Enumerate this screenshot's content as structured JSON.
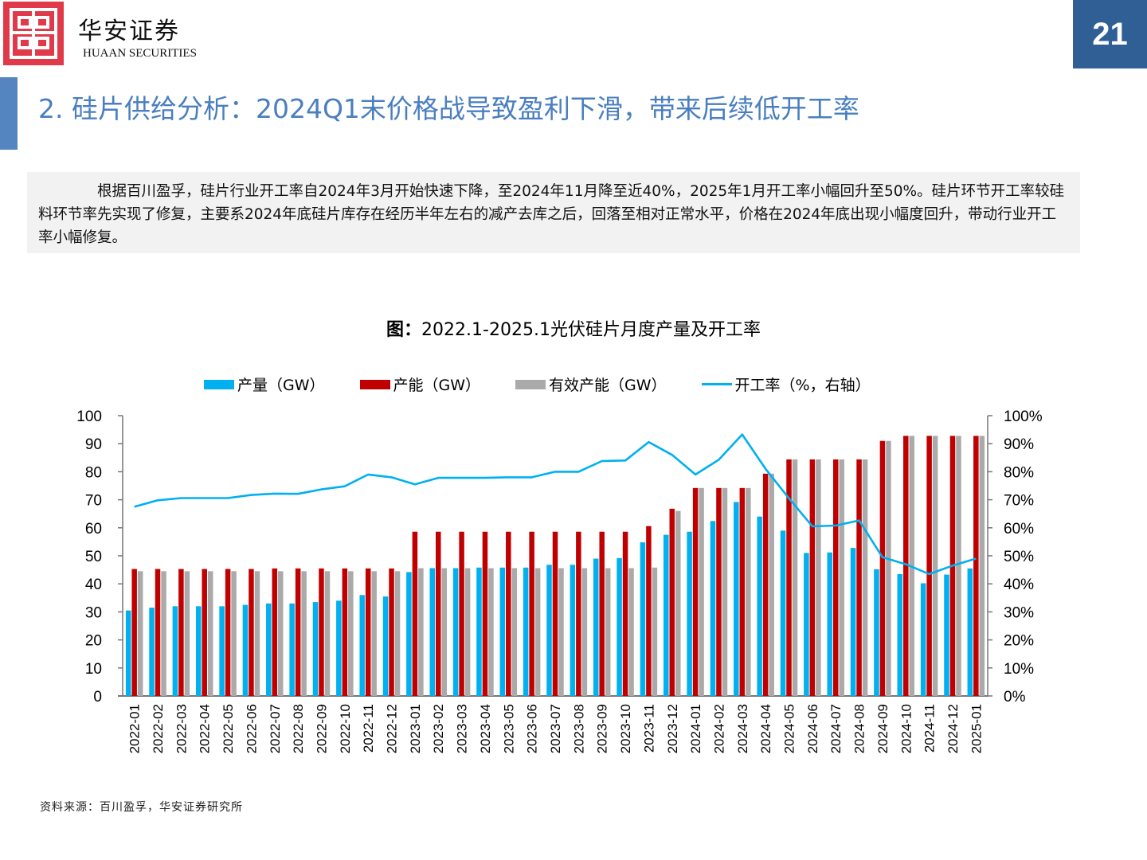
{
  "header": {
    "logo_cn": "华安证券",
    "logo_en": "HUAAN SECURITIES",
    "page_number": "21"
  },
  "title": "2. 硅片供给分析：2024Q1末价格战导致盈利下滑，带来后续低开工率",
  "summary": "根据百川盈孚，硅片行业开工率自2024年3月开始快速下降，至2024年11月降至近40%，2025年1月开工率小幅回升至50%。硅片环节开工率较硅料环节率先实现了修复，主要系2024年底硅片库存在经历半年左右的减产去库之后，回落至相对正常水平，价格在2024年底出现小幅度回升，带动行业开工率小幅修复。",
  "chart_title_prefix": "图：",
  "chart_title_main": "2022.1-2025.1光伏硅片月度产量及开工率",
  "source": "资料来源：百川盈孚，华安证券研究所",
  "colors": {
    "output": "#00b0f0",
    "capacity": "#c00000",
    "effective": "#aaaaaa",
    "rate": "#00b0f0",
    "title": "#4a7fbf",
    "page_badge": "#2f5f95"
  },
  "chart_data": {
    "type": "bar+line",
    "title": "2022.1-2025.1光伏硅片月度产量及开工率",
    "legend_position": "top",
    "categories": [
      "2022-01",
      "2022-02",
      "2022-03",
      "2022-04",
      "2022-05",
      "2022-06",
      "2022-07",
      "2022-08",
      "2022-09",
      "2022-10",
      "2022-11",
      "2022-12",
      "2023-01",
      "2023-02",
      "2023-03",
      "2023-04",
      "2023-05",
      "2023-06",
      "2023-07",
      "2023-08",
      "2023-09",
      "2023-10",
      "2023-11",
      "2023-12",
      "2024-01",
      "2024-02",
      "2024-03",
      "2024-04",
      "2024-05",
      "2024-06",
      "2024-07",
      "2024-08",
      "2024-09",
      "2024-10",
      "2024-11",
      "2024-12",
      "2025-01"
    ],
    "series": [
      {
        "name": "产量（GW）",
        "type": "bar",
        "axis": "left",
        "values": [
          30.5,
          31.5,
          32,
          32,
          32,
          32.5,
          33,
          33,
          33.5,
          34,
          36,
          35.5,
          44.2,
          45.6,
          45.6,
          45.8,
          45.8,
          45.8,
          46.8,
          46.8,
          49,
          49.2,
          54.8,
          57.5,
          58.6,
          62.4,
          69.2,
          64,
          59,
          51,
          51.2,
          52.8,
          45.2,
          43.5,
          40.2,
          43.3,
          45.5
        ]
      },
      {
        "name": "产能（GW）",
        "type": "bar",
        "axis": "left",
        "values": [
          45.3,
          45.3,
          45.3,
          45.3,
          45.3,
          45.3,
          45.5,
          45.5,
          45.5,
          45.5,
          45.5,
          45.5,
          58.6,
          58.6,
          58.6,
          58.6,
          58.6,
          58.6,
          58.6,
          58.6,
          58.6,
          58.6,
          60.6,
          66.8,
          74.2,
          74.2,
          74.2,
          79.3,
          84.4,
          84.4,
          84.4,
          84.4,
          91,
          92.8,
          92.8,
          92.8,
          92.8
        ]
      },
      {
        "name": "有效产能（GW）",
        "type": "bar",
        "axis": "left",
        "values": [
          44.5,
          44.5,
          44.5,
          44.5,
          44.5,
          44.5,
          44.5,
          44.5,
          44.5,
          44.5,
          44.5,
          44.5,
          45.6,
          45.6,
          45.6,
          45.6,
          45.6,
          45.6,
          45.6,
          45.6,
          45.6,
          45.6,
          45.8,
          66,
          74.2,
          74.2,
          74.2,
          79.3,
          84.4,
          84.4,
          84.4,
          84.4,
          91,
          92.8,
          92.8,
          92.8,
          92.8
        ]
      },
      {
        "name": "开工率（%，右轴）",
        "type": "line",
        "axis": "right",
        "values": [
          67.5,
          69.8,
          70.6,
          70.6,
          70.6,
          71.7,
          72.2,
          72.1,
          73.7,
          74.8,
          79,
          78,
          75.5,
          77.8,
          77.8,
          77.8,
          78,
          78,
          80,
          80,
          83.8,
          84,
          90.6,
          86,
          79,
          84.3,
          93.3,
          81,
          70.5,
          60.5,
          60.8,
          62.6,
          49.5,
          47,
          43.5,
          46.5,
          49
        ]
      }
    ],
    "y_left": {
      "min": 0,
      "max": 100,
      "ticks": [
        "0",
        "10",
        "20",
        "30",
        "40",
        "50",
        "60",
        "70",
        "80",
        "90",
        "100"
      ]
    },
    "y_right": {
      "min": 0,
      "max": 100,
      "ticks": [
        "0%",
        "10%",
        "20%",
        "30%",
        "40%",
        "50%",
        "60%",
        "70%",
        "80%",
        "90%",
        "100%"
      ]
    },
    "grid": false
  }
}
